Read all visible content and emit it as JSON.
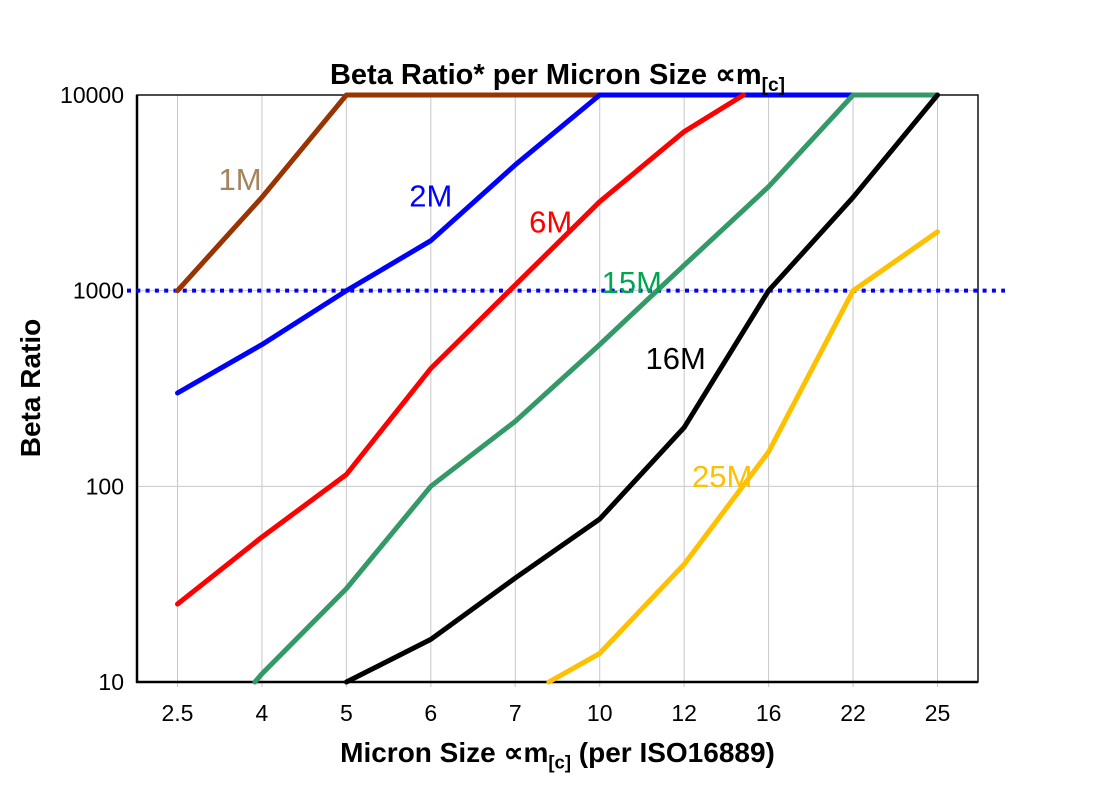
{
  "title": {
    "text": "Beta Ratio* per Micron Size",
    "symbol": "∝m",
    "subscript": "[c]"
  },
  "y_axis": {
    "label": "Beta Ratio",
    "ticks": [
      "10000",
      "1000",
      "100",
      "10"
    ]
  },
  "x_axis": {
    "label_pre": "Micron Size",
    "symbol": "∝m",
    "subscript": "[c]",
    "label_post": "(per ISO16889)",
    "ticks": [
      "2.5",
      "4",
      "5",
      "6",
      "7",
      "10",
      "12",
      "16",
      "22",
      "25"
    ]
  },
  "chart_data": {
    "type": "line",
    "title": "Beta Ratio* per Micron Size ∝m[c]",
    "xlabel": "Micron Size ∝m[c] (per ISO16889)",
    "ylabel": "Beta Ratio",
    "x_scale": "categorical",
    "y_scale": "log",
    "ylim": [
      10,
      10000
    ],
    "categories": [
      "2.5",
      "4",
      "5",
      "6",
      "7",
      "10",
      "12",
      "16",
      "22",
      "25"
    ],
    "grid": {
      "vertical": true,
      "horizontal_at": [
        100,
        1000
      ]
    },
    "grid_color": "#c8c8c8",
    "reference_line": {
      "value": 1000,
      "style": "dotted",
      "color": "#0000ff"
    },
    "legend_position": "inline-labels",
    "series": [
      {
        "name": "1M",
        "color": "#993300",
        "label_color": "#a6835c",
        "values": [
          1000,
          3000,
          10000,
          10000,
          10000,
          10000,
          null,
          null,
          null,
          null
        ],
        "label_pos": {
          "index": 0.74,
          "value": 3700
        }
      },
      {
        "name": "2M",
        "color": "#0000ff",
        "label_color": "#0000ff",
        "values": [
          300,
          530,
          1000,
          1800,
          4400,
          10000,
          10000,
          10000,
          10000,
          null
        ],
        "label_pos": {
          "index": 3.0,
          "value": 3050
        }
      },
      {
        "name": "6M",
        "color": "#ff0000",
        "label_color": "#ff0000",
        "values": [
          25,
          55,
          115,
          400,
          1070,
          2850,
          6500,
          12000,
          null,
          null
        ],
        "label_pos": {
          "index": 4.42,
          "value": 2240
        }
      },
      {
        "name": "15M",
        "color": "#339966",
        "label_color": "#00a550",
        "values": [
          3.5,
          11,
          30,
          100,
          215,
          530,
          1350,
          3400,
          10000,
          10000
        ],
        "label_pos": {
          "index": 5.38,
          "value": 1100
        }
      },
      {
        "name": "16M",
        "color": "#000000",
        "label_color": "#000000",
        "values": [
          null,
          null,
          10,
          16.5,
          34,
          68,
          200,
          1000,
          3000,
          10000
        ],
        "label_pos": {
          "index": 5.9,
          "value": 450
        }
      },
      {
        "name": "25M",
        "color": "#ffc000",
        "label_color": "#ffc000",
        "values": [
          null,
          null,
          null,
          null,
          8,
          14,
          40,
          150,
          1000,
          2000
        ],
        "label_pos": {
          "index": 6.45,
          "value": 112
        }
      }
    ]
  }
}
